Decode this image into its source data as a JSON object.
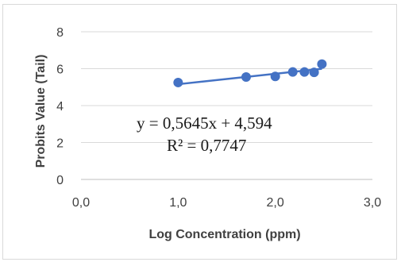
{
  "chart_data": {
    "type": "scatter",
    "xlabel": "Log Concentration (ppm)",
    "ylabel": "Probits Value (Tail)",
    "xlim": [
      0,
      3
    ],
    "ylim": [
      0,
      8
    ],
    "x_ticks": [
      "0,0",
      "1,0",
      "2,0",
      "3,0"
    ],
    "y_ticks": [
      "0",
      "2",
      "4",
      "6",
      "8"
    ],
    "x_tick_values": [
      0,
      1,
      2,
      3
    ],
    "y_tick_values": [
      0,
      2,
      4,
      6,
      8
    ],
    "grid": "horizontal",
    "legend": "none",
    "series": [
      {
        "x": [
          1.0,
          1.7,
          2.0,
          2.18,
          2.3,
          2.4,
          2.48
        ],
        "y": [
          5.25,
          5.55,
          5.58,
          5.82,
          5.82,
          5.8,
          6.25
        ],
        "color": "#4472c4"
      }
    ],
    "trendline": {
      "slope": 0.5645,
      "intercept": 4.594,
      "x_range": [
        1.0,
        2.48
      ],
      "color": "#4472c4"
    },
    "annotations": {
      "equation": "y = 0,5645x + 4,594",
      "r_squared": "R² = 0,7747"
    }
  }
}
